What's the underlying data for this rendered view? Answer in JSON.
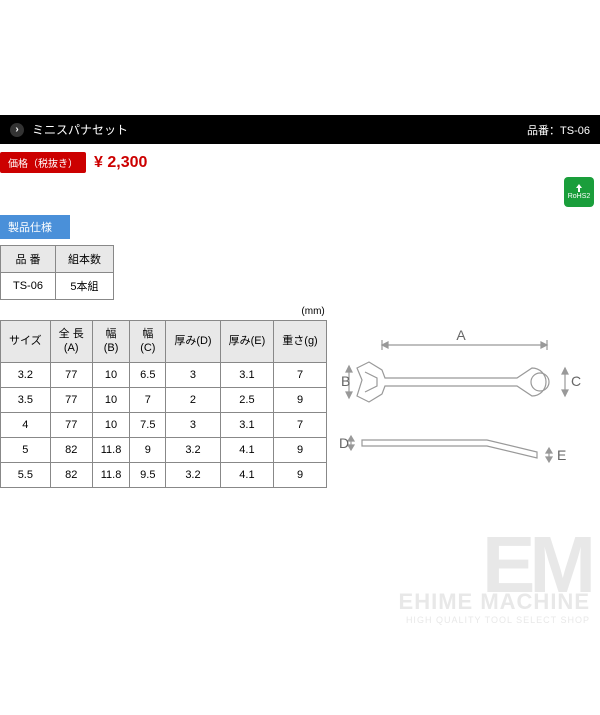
{
  "header": {
    "title": "ミニスパナセット",
    "product_code_label": "品番：",
    "product_code": "TS-06"
  },
  "price": {
    "label": "価格（税抜き）",
    "value": "¥ 2,300",
    "label_bg": "#cc0000",
    "value_color": "#cc0000"
  },
  "badge": {
    "name": "RoHS2",
    "bg": "#1a9e3b"
  },
  "spec": {
    "header": "製品仕様",
    "columns": [
      "品 番",
      "組本数"
    ],
    "rows": [
      [
        "TS-06",
        "5本組"
      ]
    ]
  },
  "size": {
    "unit": "(mm)",
    "columns": [
      "サイズ",
      "全 長\n(A)",
      "幅\n(B)",
      "幅\n(C)",
      "厚み(D)",
      "厚み(E)",
      "重さ(g)"
    ],
    "rows": [
      [
        "3.2",
        "77",
        "10",
        "6.5",
        "3",
        "3.1",
        "7"
      ],
      [
        "3.5",
        "77",
        "10",
        "7",
        "2",
        "2.5",
        "9"
      ],
      [
        "4",
        "77",
        "10",
        "7.5",
        "3",
        "3.1",
        "7"
      ],
      [
        "5",
        "82",
        "11.8",
        "9",
        "3.2",
        "4.1",
        "9"
      ],
      [
        "5.5",
        "82",
        "11.8",
        "9.5",
        "3.2",
        "4.1",
        "9"
      ]
    ]
  },
  "diagram": {
    "labels": {
      "A": "A",
      "B": "B",
      "C": "C",
      "D": "D",
      "E": "E"
    },
    "stroke": "#999999",
    "label_color": "#666666"
  },
  "watermark": {
    "em": "EM",
    "title": "EHIME MACHINE",
    "sub": "HIGH QUALITY TOOL SELECT SHOP",
    "color": "#e8e8e8"
  },
  "colors": {
    "title_bg": "#000000",
    "spec_header_bg": "#4a90d9",
    "table_border": "#888888",
    "table_header_bg": "#e8e8e8"
  }
}
